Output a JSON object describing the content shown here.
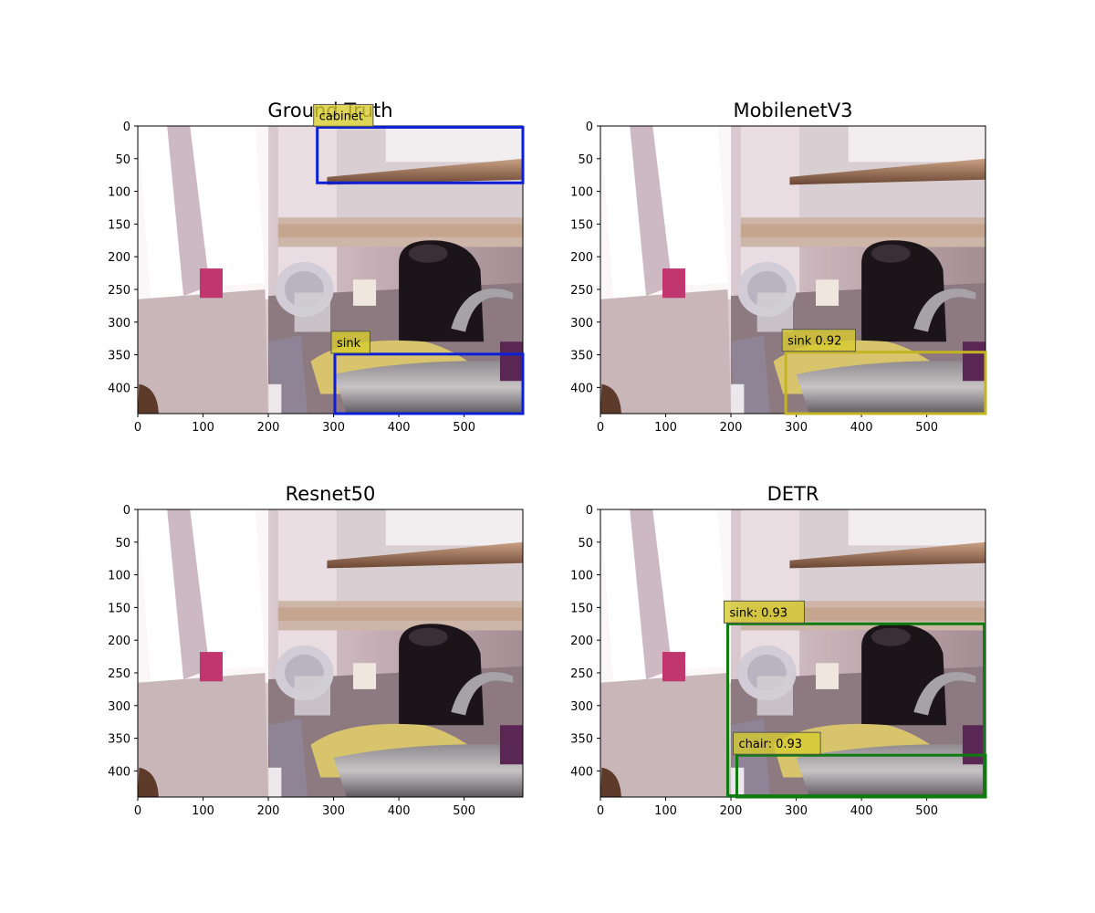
{
  "figure": {
    "image_width": 590,
    "image_height": 440,
    "colors": {
      "gt_box": "#0b1fd6",
      "mobilenet_box": "#c4b422",
      "detr_box": "#0f7a0f",
      "label_bg": "#d7cc2f"
    }
  },
  "chart_data": [
    {
      "type": "image-detection",
      "title": "Ground Truth",
      "xlim": [
        0,
        590
      ],
      "ylim": [
        440,
        0
      ],
      "xticks": [
        0,
        100,
        200,
        300,
        400,
        500
      ],
      "yticks": [
        0,
        50,
        100,
        150,
        200,
        250,
        300,
        350,
        400
      ],
      "boxes": [
        {
          "label": "cabinet",
          "x0": 275,
          "y0": 2,
          "x1": 590,
          "y1": 87,
          "color": "#0b1fd6"
        },
        {
          "label": "sink",
          "x0": 302,
          "y0": 349,
          "x1": 590,
          "y1": 440,
          "color": "#0b1fd6"
        }
      ]
    },
    {
      "type": "image-detection",
      "title": "MobilenetV3",
      "xlim": [
        0,
        590
      ],
      "ylim": [
        440,
        0
      ],
      "xticks": [
        0,
        100,
        200,
        300,
        400,
        500
      ],
      "yticks": [
        0,
        50,
        100,
        150,
        200,
        250,
        300,
        350,
        400
      ],
      "boxes": [
        {
          "label": "sink 0.92",
          "x0": 284,
          "y0": 346,
          "x1": 590,
          "y1": 440,
          "color": "#c4b422"
        }
      ]
    },
    {
      "type": "image-detection",
      "title": "Resnet50",
      "xlim": [
        0,
        590
      ],
      "ylim": [
        440,
        0
      ],
      "xticks": [
        0,
        100,
        200,
        300,
        400,
        500
      ],
      "yticks": [
        0,
        50,
        100,
        150,
        200,
        250,
        300,
        350,
        400
      ],
      "boxes": []
    },
    {
      "type": "image-detection",
      "title": "DETR",
      "xlim": [
        0,
        590
      ],
      "ylim": [
        440,
        0
      ],
      "xticks": [
        0,
        100,
        200,
        300,
        400,
        500
      ],
      "yticks": [
        0,
        50,
        100,
        150,
        200,
        250,
        300,
        350,
        400
      ],
      "boxes": [
        {
          "label": "sink: 0.93",
          "x0": 195,
          "y0": 175,
          "x1": 588,
          "y1": 438,
          "color": "#0f7a0f"
        },
        {
          "label": "chair: 0.93",
          "x0": 209,
          "y0": 376,
          "x1": 590,
          "y1": 440,
          "color": "#0f7a0f"
        }
      ]
    }
  ]
}
